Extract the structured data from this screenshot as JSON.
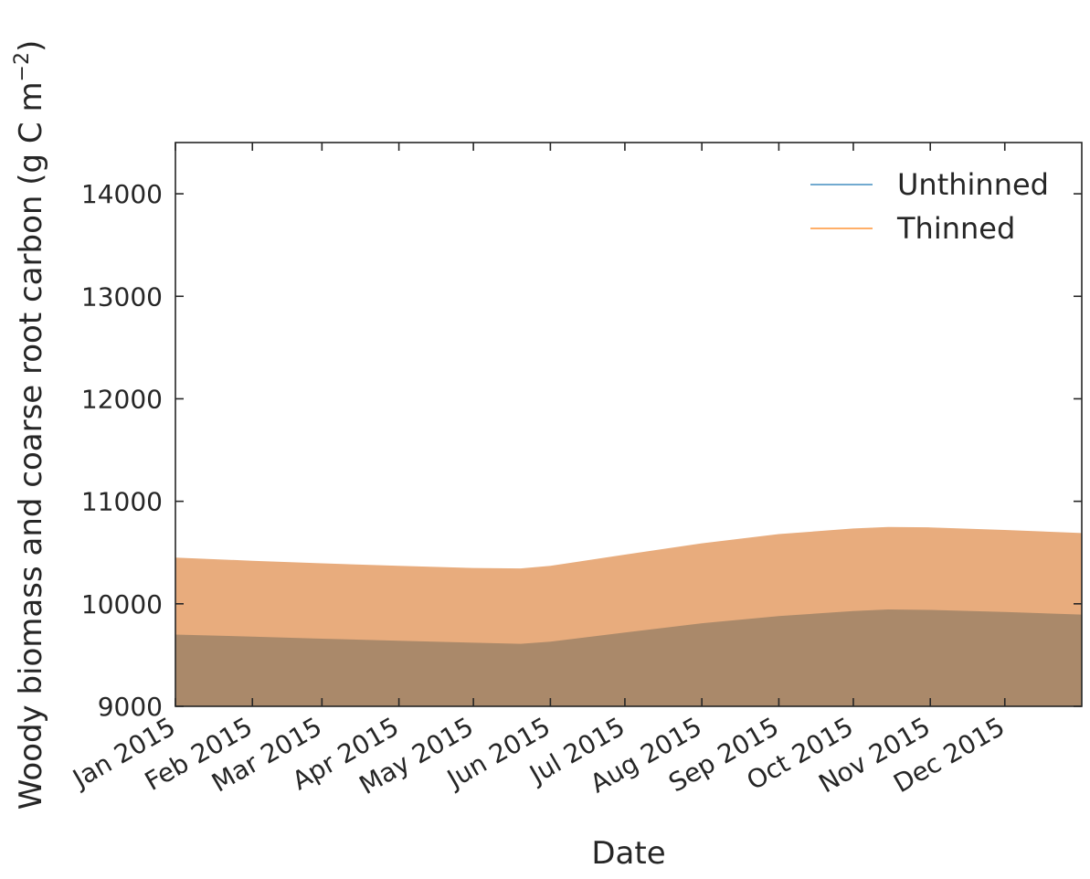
{
  "chart_data": {
    "type": "area",
    "xlabel": "Date",
    "ylabel_main": "Woody biomass and coarse root carbon (g C m",
    "ylabel_sup": "−2",
    "ylabel_close": ")",
    "ylim": [
      9000,
      14500
    ],
    "xlim": [
      "2015-01-01",
      "2016-01-01"
    ],
    "y_ticks": [
      9000,
      10000,
      11000,
      12000,
      13000,
      14000
    ],
    "y_tick_labels": [
      "9000",
      "10000",
      "11000",
      "12000",
      "13000",
      "14000"
    ],
    "x_ticks": [
      "2015-01-01",
      "2015-02-01",
      "2015-03-01",
      "2015-04-01",
      "2015-05-01",
      "2015-06-01",
      "2015-07-01",
      "2015-08-01",
      "2015-09-01",
      "2015-10-01",
      "2015-11-01",
      "2015-12-01"
    ],
    "x_tick_labels": [
      "Jan 2015",
      "Feb 2015",
      "Mar 2015",
      "Apr 2015",
      "May 2015",
      "Jun 2015",
      "Jul 2015",
      "Aug 2015",
      "Sep 2015",
      "Oct 2015",
      "Nov 2015",
      "Dec 2015"
    ],
    "grid": false,
    "legend_position": "top-right",
    "x": [
      "2015-01-01",
      "2015-02-01",
      "2015-03-01",
      "2015-04-01",
      "2015-05-01",
      "2015-05-20",
      "2015-06-01",
      "2015-07-01",
      "2015-08-01",
      "2015-09-01",
      "2015-10-01",
      "2015-10-15",
      "2015-11-01",
      "2015-12-01",
      "2016-01-01"
    ],
    "series": [
      {
        "name": "Unthinned",
        "color": "#1f77b4",
        "fill": "#aa896a",
        "values": [
          9700,
          9680,
          9660,
          9640,
          9620,
          9610,
          9630,
          9720,
          9810,
          9880,
          9930,
          9945,
          9940,
          9920,
          9895
        ]
      },
      {
        "name": "Thinned",
        "color": "#ff7f0e",
        "fill": "#e8ac7d",
        "values": [
          10450,
          10420,
          10395,
          10370,
          10350,
          10345,
          10370,
          10480,
          10590,
          10680,
          10735,
          10750,
          10745,
          10720,
          10690
        ]
      }
    ]
  }
}
